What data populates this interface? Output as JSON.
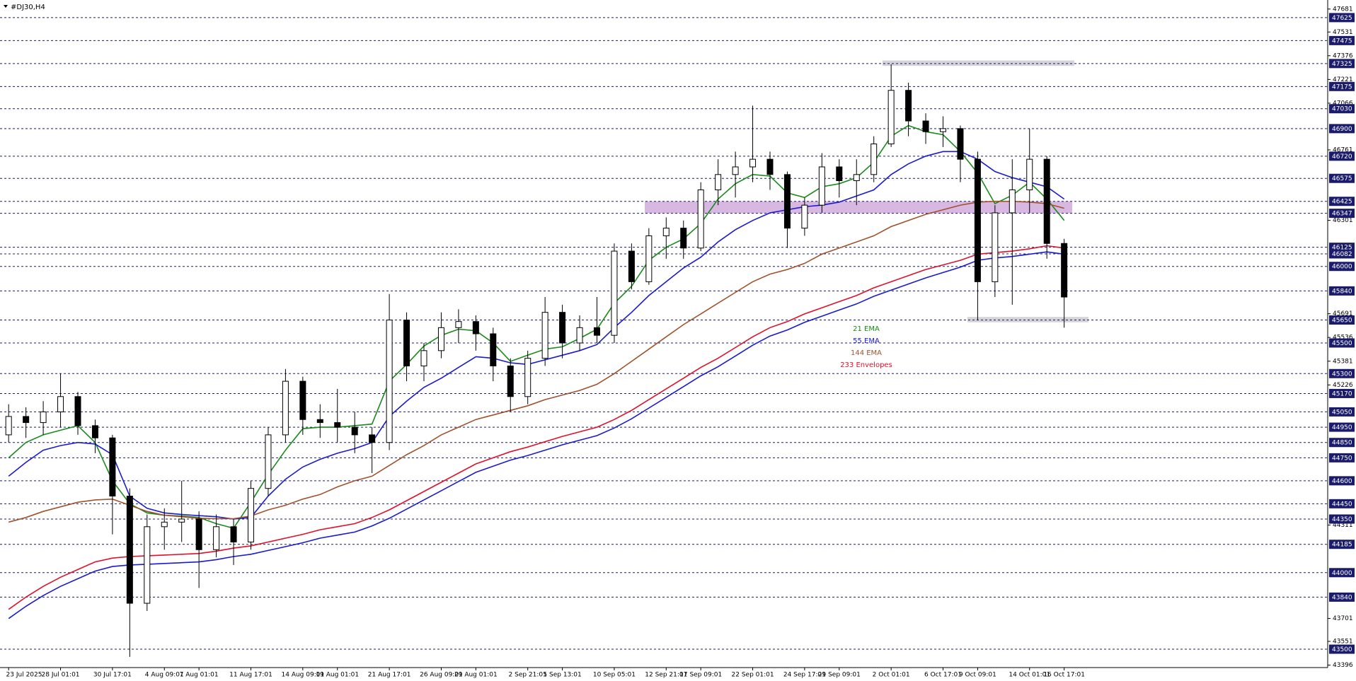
{
  "chart_data": {
    "type": "candlestick",
    "title": "#DJ30,H4",
    "categories": [
      "23 Jul 2025",
      null,
      null,
      "28 Jul 01:01",
      null,
      null,
      "30 Jul 17:01",
      null,
      null,
      "4 Aug 09:01",
      null,
      "7 Aug 01:01",
      null,
      null,
      "11 Aug 17:01",
      null,
      null,
      "14 Aug 09:01",
      null,
      "19 Aug 01:01",
      null,
      null,
      "21 Aug 17:01",
      null,
      null,
      "26 Aug 09:01",
      null,
      "29 Aug 01:01",
      null,
      null,
      "2 Sep 21:01",
      null,
      "5 Sep 13:01",
      null,
      null,
      "10 Sep 05:01",
      null,
      null,
      "12 Sep 21:01",
      null,
      "17 Sep 09:01",
      null,
      null,
      "22 Sep 01:01",
      null,
      null,
      "24 Sep 17:01",
      null,
      "29 Sep 09:01",
      null,
      null,
      "2 Oct 01:01",
      null,
      null,
      "6 Oct 17:01",
      null,
      "9 Oct 09:01",
      null,
      null,
      "14 Oct 01:01",
      null,
      "16 Oct 17:01"
    ],
    "ohlc": [
      [
        44900,
        45100,
        44850,
        45020
      ],
      [
        45020,
        45080,
        44880,
        44980
      ],
      [
        44980,
        45120,
        44900,
        45050
      ],
      [
        45050,
        45300,
        44950,
        45150
      ],
      [
        45150,
        45180,
        44900,
        44960
      ],
      [
        44960,
        45000,
        44780,
        44880
      ],
      [
        44880,
        44900,
        44250,
        44500
      ],
      [
        44500,
        44550,
        43450,
        43800
      ],
      [
        43800,
        44380,
        43750,
        44300
      ],
      [
        44300,
        44420,
        44150,
        44330
      ],
      [
        44330,
        44600,
        44200,
        44350
      ],
      [
        44350,
        44400,
        43900,
        44150
      ],
      [
        44150,
        44380,
        44100,
        44300
      ],
      [
        44300,
        44350,
        44050,
        44200
      ],
      [
        44200,
        44600,
        44150,
        44550
      ],
      [
        44550,
        44950,
        44500,
        44900
      ],
      [
        44900,
        45330,
        44850,
        45250
      ],
      [
        45250,
        45280,
        44900,
        45000
      ],
      [
        45000,
        45100,
        44880,
        44980
      ],
      [
        44980,
        45200,
        44850,
        44950
      ],
      [
        44950,
        45050,
        44780,
        44900
      ],
      [
        44900,
        44950,
        44650,
        44850
      ],
      [
        44850,
        45820,
        44800,
        45650
      ],
      [
        45650,
        45700,
        45250,
        45350
      ],
      [
        45350,
        45500,
        45250,
        45450
      ],
      [
        45450,
        45700,
        45400,
        45600
      ],
      [
        45600,
        45720,
        45500,
        45640
      ],
      [
        45640,
        45680,
        45450,
        45560
      ],
      [
        45560,
        45600,
        45250,
        45350
      ],
      [
        45350,
        45400,
        45050,
        45150
      ],
      [
        45150,
        45450,
        45100,
        45400
      ],
      [
        45400,
        45800,
        45350,
        45700
      ],
      [
        45700,
        45750,
        45400,
        45500
      ],
      [
        45500,
        45680,
        45450,
        45600
      ],
      [
        45600,
        45800,
        45500,
        45550
      ],
      [
        45550,
        46150,
        45500,
        46100
      ],
      [
        46100,
        46150,
        45850,
        45900
      ],
      [
        45900,
        46250,
        45880,
        46200
      ],
      [
        46200,
        46320,
        46050,
        46250
      ],
      [
        46250,
        46300,
        46050,
        46120
      ],
      [
        46120,
        46550,
        46100,
        46500
      ],
      [
        46500,
        46700,
        46400,
        46600
      ],
      [
        46600,
        46750,
        46450,
        46650
      ],
      [
        46650,
        47050,
        46550,
        46700
      ],
      [
        46700,
        46750,
        46500,
        46600
      ],
      [
        46600,
        46620,
        46120,
        46250
      ],
      [
        46250,
        46450,
        46200,
        46400
      ],
      [
        46400,
        46740,
        46350,
        46650
      ],
      [
        46650,
        46700,
        46450,
        46560
      ],
      [
        46560,
        46700,
        46400,
        46600
      ],
      [
        46600,
        46850,
        46550,
        46800
      ],
      [
        46800,
        47320,
        46780,
        47150
      ],
      [
        47150,
        47200,
        46850,
        46950
      ],
      [
        46950,
        47000,
        46800,
        46880
      ],
      [
        46880,
        46980,
        46780,
        46900
      ],
      [
        46900,
        46920,
        46550,
        46700
      ],
      [
        46700,
        46750,
        45650,
        45900
      ],
      [
        45900,
        46400,
        45800,
        46350
      ],
      [
        46350,
        46700,
        45750,
        46500
      ],
      [
        46500,
        46900,
        46350,
        46700
      ],
      [
        46700,
        46720,
        46050,
        46150
      ],
      [
        46150,
        46180,
        45600,
        45800
      ]
    ],
    "series": [
      {
        "name": "21 EMA",
        "color": "#1a8a1a",
        "values": [
          44750,
          44850,
          44900,
          44930,
          44960,
          44850,
          44600,
          44450,
          44390,
          44375,
          44370,
          44360,
          44320,
          44290,
          44460,
          44640,
          44800,
          44940,
          44950,
          44950,
          44960,
          44970,
          45250,
          45360,
          45480,
          45550,
          45590,
          45580,
          45500,
          45380,
          45420,
          45460,
          45475,
          45530,
          45590,
          45760,
          45870,
          46040,
          46125,
          46180,
          46280,
          46440,
          46540,
          46600,
          46590,
          46480,
          46450,
          46520,
          46540,
          46580,
          46680,
          46850,
          46920,
          46880,
          46860,
          46750,
          46610,
          46410,
          46465,
          46550,
          46440,
          46300
        ]
      },
      {
        "name": "55 EMA",
        "color": "#1a1ad0",
        "values": [
          44630,
          44720,
          44800,
          44830,
          44850,
          44840,
          44770,
          44500,
          44420,
          44390,
          44380,
          44372,
          44365,
          44350,
          44360,
          44500,
          44610,
          44690,
          44740,
          44780,
          44810,
          44850,
          45020,
          45120,
          45210,
          45270,
          45340,
          45410,
          45400,
          45370,
          45360,
          45390,
          45420,
          45450,
          45490,
          45600,
          45700,
          45810,
          45900,
          45990,
          46060,
          46160,
          46240,
          46300,
          46350,
          46370,
          46390,
          46400,
          46420,
          46460,
          46500,
          46600,
          46670,
          46720,
          46750,
          46750,
          46700,
          46620,
          46580,
          46550,
          46520,
          46440
        ]
      },
      {
        "name": "144 EMA",
        "color": "#a0522d",
        "values": [
          44330,
          44360,
          44400,
          44430,
          44460,
          44475,
          44480,
          44440,
          44400,
          44375,
          44365,
          44355,
          44352,
          44352,
          44370,
          44410,
          44440,
          44480,
          44510,
          44560,
          44600,
          44630,
          44700,
          44770,
          44830,
          44900,
          44950,
          45000,
          45030,
          45060,
          45090,
          45130,
          45160,
          45190,
          45230,
          45300,
          45380,
          45460,
          45540,
          45620,
          45690,
          45760,
          45830,
          45900,
          45950,
          45980,
          46020,
          46080,
          46120,
          46160,
          46200,
          46260,
          46300,
          46340,
          46370,
          46400,
          46420,
          46425,
          46425,
          46420,
          46410,
          46380
        ]
      },
      {
        "name": "233 Envelopes",
        "color": "#e0102a",
        "values": [
          43760,
          43840,
          43910,
          43970,
          44020,
          44070,
          44095,
          44105,
          44110,
          44115,
          44120,
          44125,
          44140,
          44160,
          44175,
          44200,
          44225,
          44250,
          44280,
          44300,
          44320,
          44360,
          44410,
          44470,
          44530,
          44590,
          44650,
          44710,
          44750,
          44790,
          44820,
          44855,
          44890,
          44920,
          44950,
          45000,
          45060,
          45130,
          45200,
          45270,
          45340,
          45400,
          45470,
          45540,
          45600,
          45640,
          45690,
          45730,
          45770,
          45810,
          45860,
          45900,
          45940,
          45980,
          46010,
          46040,
          46080,
          46090,
          46100,
          46115,
          46135,
          46120
        ]
      },
      {
        "color": "#1a1ad0",
        "values": [
          43700,
          43780,
          43850,
          43910,
          43960,
          44010,
          44040,
          44050,
          44055,
          44060,
          44065,
          44070,
          44085,
          44105,
          44120,
          44145,
          44170,
          44195,
          44225,
          44245,
          44265,
          44305,
          44355,
          44415,
          44475,
          44535,
          44595,
          44655,
          44695,
          44735,
          44765,
          44800,
          44835,
          44865,
          44895,
          44945,
          45005,
          45075,
          45145,
          45215,
          45285,
          45345,
          45415,
          45485,
          45545,
          45585,
          45635,
          45675,
          45715,
          45755,
          45805,
          45845,
          45885,
          45925,
          45960,
          45995,
          46040,
          46055,
          46065,
          46080,
          46095,
          46080
        ]
      }
    ],
    "zones": [
      {
        "low": 47310,
        "high": 47345,
        "color": "#d3d3d8"
      },
      {
        "low": 46347,
        "high": 46425,
        "color": "#d8b8e0"
      },
      {
        "low": 45635,
        "high": 45670,
        "color": "#d3d3d8"
      }
    ],
    "ylim": [
      43380,
      47740
    ],
    "yticks": [
      47681,
      47531,
      47376,
      47221,
      47066,
      46761,
      46301,
      45691,
      45536,
      45381,
      45226,
      44311,
      43701,
      43551,
      43396
    ],
    "levels": [
      47625,
      47475,
      47325,
      47175,
      47030,
      46900,
      46720,
      46575,
      46425,
      46347,
      46125,
      46082,
      46000,
      45840,
      45650,
      45500,
      45300,
      45170,
      45050,
      44950,
      44850,
      44750,
      44600,
      44450,
      44350,
      44185,
      44000,
      43840,
      43500
    ],
    "level_color": "#1b1b6b",
    "bull_color": "#ffffff",
    "bear_color": "#000000"
  }
}
